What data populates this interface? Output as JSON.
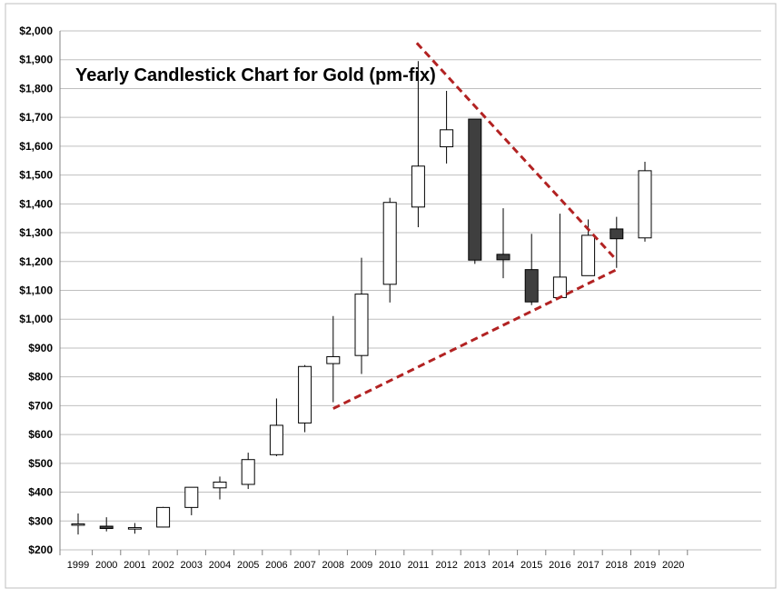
{
  "chart_data": {
    "type": "candlestick",
    "title": "Yearly Candlestick Chart for Gold (pm-fix)",
    "xlabel": "",
    "ylabel": "",
    "ylim": [
      200,
      2000
    ],
    "y_ticks": [
      "$200",
      "$300",
      "$400",
      "$500",
      "$600",
      "$700",
      "$800",
      "$900",
      "$1,000",
      "$1,100",
      "$1,200",
      "$1,300",
      "$1,400",
      "$1,500",
      "$1,600",
      "$1,700",
      "$1,800",
      "$1,900",
      "$2,000"
    ],
    "y_tick_values": [
      200,
      300,
      400,
      500,
      600,
      700,
      800,
      900,
      1000,
      1100,
      1200,
      1300,
      1400,
      1500,
      1600,
      1700,
      1800,
      1900,
      2000
    ],
    "categories": [
      "1999",
      "2000",
      "2001",
      "2002",
      "2003",
      "2004",
      "2005",
      "2006",
      "2007",
      "2008",
      "2009",
      "2010",
      "2011",
      "2012",
      "2013",
      "2014",
      "2015",
      "2016",
      "2017",
      "2018",
      "2019",
      "2020"
    ],
    "grid": true,
    "colors": {
      "up_fill": "#ffffff",
      "down_fill": "#3f3f3f",
      "wick": "#000000",
      "grid": "#bfbfbf",
      "trendline": "#b22222"
    },
    "candles": [
      {
        "x": "1999",
        "open": 288,
        "high": 326,
        "low": 253,
        "close": 290
      },
      {
        "x": "2000",
        "open": 282,
        "high": 313,
        "low": 264,
        "close": 274
      },
      {
        "x": "2001",
        "open": 272,
        "high": 293,
        "low": 256,
        "close": 277
      },
      {
        "x": "2002",
        "open": 279,
        "high": 349,
        "low": 278,
        "close": 347
      },
      {
        "x": "2003",
        "open": 347,
        "high": 416,
        "low": 320,
        "close": 417
      },
      {
        "x": "2004",
        "open": 415,
        "high": 454,
        "low": 375,
        "close": 435
      },
      {
        "x": "2005",
        "open": 427,
        "high": 537,
        "low": 411,
        "close": 513
      },
      {
        "x": "2006",
        "open": 530,
        "high": 725,
        "low": 525,
        "close": 632
      },
      {
        "x": "2007",
        "open": 640,
        "high": 841,
        "low": 608,
        "close": 836
      },
      {
        "x": "2008",
        "open": 846,
        "high": 1011,
        "low": 712,
        "close": 870
      },
      {
        "x": "2009",
        "open": 874,
        "high": 1213,
        "low": 810,
        "close": 1087
      },
      {
        "x": "2010",
        "open": 1121,
        "high": 1421,
        "low": 1058,
        "close": 1405
      },
      {
        "x": "2011",
        "open": 1389,
        "high": 1895,
        "low": 1319,
        "close": 1531
      },
      {
        "x": "2012",
        "open": 1598,
        "high": 1792,
        "low": 1540,
        "close": 1657
      },
      {
        "x": "2013",
        "open": 1694,
        "high": 1694,
        "low": 1192,
        "close": 1205
      },
      {
        "x": "2014",
        "open": 1225,
        "high": 1385,
        "low": 1142,
        "close": 1206
      },
      {
        "x": "2015",
        "open": 1172,
        "high": 1296,
        "low": 1049,
        "close": 1060
      },
      {
        "x": "2016",
        "open": 1075,
        "high": 1366,
        "low": 1077,
        "close": 1146
      },
      {
        "x": "2017",
        "open": 1151,
        "high": 1346,
        "low": 1151,
        "close": 1291
      },
      {
        "x": "2018",
        "open": 1313,
        "high": 1355,
        "low": 1178,
        "close": 1279
      },
      {
        "x": "2019",
        "open": 1282,
        "high": 1546,
        "low": 1269,
        "close": 1515
      }
    ],
    "trendlines": [
      {
        "name": "",
        "from": {
          "x": "2010.95",
          "y": 1958
        },
        "to": {
          "x": "2018",
          "y": 1205
        }
      },
      {
        "name": "",
        "from": {
          "x": "2008",
          "y": 690
        },
        "to": {
          "x": "2018",
          "y": 1172
        }
      }
    ]
  }
}
